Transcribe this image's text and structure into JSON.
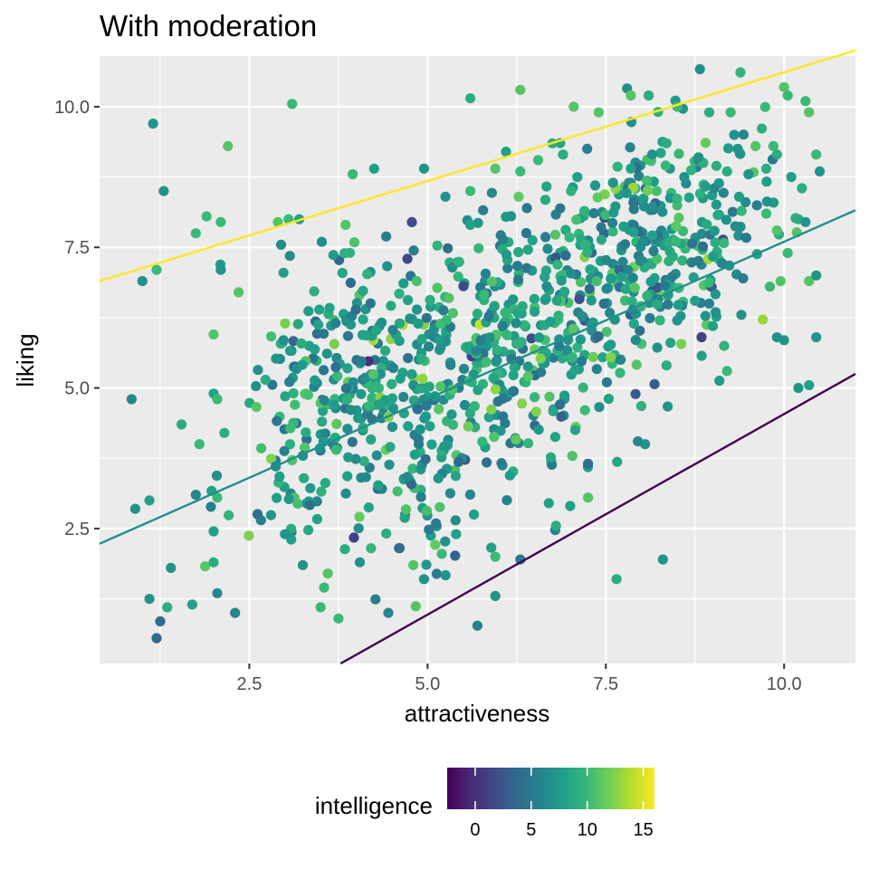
{
  "chart_data": {
    "type": "scatter",
    "title": "With moderation",
    "xlabel": "attractiveness",
    "ylabel": "liking",
    "xlim": [
      0.4,
      11.0
    ],
    "ylim": [
      0.1,
      10.9
    ],
    "x_ticks": [
      2.5,
      5.0,
      7.5,
      10.0
    ],
    "x_tick_labels": [
      "2.5",
      "5.0",
      "7.5",
      "10.0"
    ],
    "y_ticks": [
      2.5,
      5.0,
      7.5,
      10.0
    ],
    "y_tick_labels": [
      "2.5",
      "5.0",
      "7.5",
      "10.0"
    ],
    "grid": true,
    "color_variable": "intelligence",
    "color_scale": {
      "name": "viridis",
      "range": [
        -2.5,
        16.0
      ],
      "stops": [
        "#440154",
        "#482878",
        "#3e4989",
        "#31688e",
        "#26828e",
        "#1f9e89",
        "#35b779",
        "#6ece58",
        "#b5de2b",
        "#fde725"
      ]
    },
    "legend": {
      "title": "intelligence",
      "position": "bottom",
      "ticks": [
        0,
        5,
        10,
        15
      ],
      "tick_labels": [
        "0",
        "5",
        "10",
        "15"
      ]
    },
    "fit_lines": [
      {
        "intelligence": 16,
        "color": "#fde725",
        "x1": 0.4,
        "y1": 6.9,
        "x2": 11.0,
        "y2": 11.0
      },
      {
        "intelligence": 7,
        "color": "#21908c",
        "x1": 0.4,
        "y1": 2.23,
        "x2": 11.0,
        "y2": 8.16
      },
      {
        "intelligence": -2,
        "color": "#440154",
        "x1": 3.78,
        "y1": 0.1,
        "x2": 11.0,
        "y2": 5.25
      }
    ],
    "points": [
      [
        1.15,
        9.7,
        7
      ],
      [
        1.3,
        8.5,
        7
      ],
      [
        2.2,
        9.3,
        11
      ],
      [
        3.1,
        10.05,
        10
      ],
      [
        6.3,
        10.3,
        11
      ],
      [
        5.6,
        10.15,
        9
      ],
      [
        1.0,
        6.9,
        7
      ],
      [
        1.2,
        7.1,
        10
      ],
      [
        1.75,
        7.75,
        10
      ],
      [
        1.9,
        8.05,
        10
      ],
      [
        2.1,
        7.95,
        10
      ],
      [
        2.1,
        7.1,
        7
      ],
      [
        2.35,
        6.7,
        11
      ],
      [
        2.0,
        5.95,
        11
      ],
      [
        2.9,
        7.95,
        11
      ],
      [
        3.05,
        8.0,
        10
      ],
      [
        3.2,
        8.0,
        8
      ],
      [
        3.85,
        7.9,
        11
      ],
      [
        3.95,
        8.8,
        10
      ],
      [
        4.25,
        8.9,
        8
      ],
      [
        4.95,
        8.9,
        7
      ],
      [
        5.6,
        8.5,
        10
      ],
      [
        5.25,
        8.4,
        7
      ],
      [
        5.6,
        7.9,
        8
      ],
      [
        0.85,
        4.8,
        6
      ],
      [
        0.9,
        2.85,
        7
      ],
      [
        1.1,
        3.0,
        8
      ],
      [
        1.55,
        4.35,
        9
      ],
      [
        1.8,
        4.0,
        10
      ],
      [
        2.0,
        4.9,
        8
      ],
      [
        2.05,
        4.8,
        10
      ],
      [
        2.15,
        4.2,
        9
      ],
      [
        2.05,
        3.05,
        10
      ],
      [
        1.75,
        3.1,
        6
      ],
      [
        1.4,
        1.8,
        7
      ],
      [
        1.7,
        1.15,
        8
      ],
      [
        2.0,
        2.45,
        8
      ],
      [
        2.0,
        1.9,
        9
      ],
      [
        2.05,
        1.35,
        6
      ],
      [
        2.3,
        1.0,
        6
      ],
      [
        1.1,
        1.25,
        7
      ],
      [
        1.25,
        0.85,
        4
      ],
      [
        1.2,
        0.55,
        4
      ],
      [
        1.35,
        1.1,
        9
      ],
      [
        3.0,
        2.4,
        7
      ],
      [
        3.25,
        1.85,
        7
      ],
      [
        3.5,
        1.1,
        10
      ],
      [
        3.6,
        1.7,
        11
      ],
      [
        3.55,
        1.45,
        10
      ],
      [
        3.75,
        0.9,
        10
      ],
      [
        4.05,
        1.9,
        7
      ],
      [
        4.45,
        1.0,
        6
      ],
      [
        4.6,
        2.15,
        4
      ],
      [
        4.8,
        1.85,
        11
      ],
      [
        4.95,
        1.6,
        7
      ],
      [
        5.2,
        2.05,
        10
      ],
      [
        5.4,
        2.4,
        8
      ],
      [
        5.65,
        2.75,
        8
      ],
      [
        5.95,
        1.3,
        7
      ],
      [
        5.95,
        2.0,
        10
      ],
      [
        6.3,
        1.95,
        5
      ],
      [
        6.7,
        2.95,
        8
      ],
      [
        6.8,
        2.55,
        9
      ],
      [
        7.0,
        2.9,
        8
      ],
      [
        7.25,
        3.05,
        11
      ],
      [
        7.25,
        3.65,
        4
      ],
      [
        7.65,
        1.6,
        9
      ],
      [
        8.05,
        4.0,
        7
      ],
      [
        7.95,
        4.05,
        6
      ],
      [
        8.3,
        1.95,
        7
      ],
      [
        8.35,
        5.4,
        9
      ],
      [
        8.5,
        6.2,
        7
      ],
      [
        9.0,
        6.1,
        8
      ],
      [
        9.4,
        6.3,
        7
      ],
      [
        9.9,
        5.9,
        7
      ],
      [
        10.0,
        5.85,
        7
      ],
      [
        10.2,
        5.0,
        7
      ],
      [
        10.35,
        5.05,
        8
      ],
      [
        10.45,
        5.9,
        7
      ],
      [
        10.35,
        6.9,
        11
      ],
      [
        10.45,
        7.0,
        7
      ],
      [
        9.8,
        6.8,
        10
      ],
      [
        9.2,
        5.3,
        10
      ],
      [
        8.75,
        6.55,
        8
      ],
      [
        7.05,
        10.0,
        11
      ],
      [
        7.4,
        9.9,
        11
      ],
      [
        7.85,
        10.2,
        11
      ],
      [
        8.1,
        10.2,
        9
      ],
      [
        8.5,
        10.0,
        10
      ],
      [
        8.95,
        9.9,
        9
      ],
      [
        9.25,
        9.9,
        10
      ],
      [
        9.3,
        9.5,
        7
      ],
      [
        9.35,
        9.25,
        7
      ],
      [
        9.6,
        9.3,
        11
      ],
      [
        9.85,
        9.3,
        10
      ],
      [
        9.9,
        9.15,
        9
      ],
      [
        10.0,
        10.35,
        11
      ],
      [
        10.05,
        10.2,
        10
      ],
      [
        10.3,
        10.1,
        10
      ],
      [
        10.35,
        9.9,
        11
      ],
      [
        10.45,
        9.15,
        10
      ],
      [
        10.5,
        8.85,
        7
      ],
      [
        6.75,
        9.35,
        9
      ],
      [
        6.55,
        9.05,
        10
      ],
      [
        6.3,
        8.85,
        10
      ],
      [
        6.1,
        9.2,
        8
      ],
      [
        5.95,
        8.9,
        11
      ],
      [
        6.9,
        9.15,
        9
      ],
      [
        7.1,
        8.75,
        8
      ],
      [
        7.35,
        8.6,
        7
      ],
      [
        7.6,
        8.65,
        7
      ],
      [
        7.85,
        8.9,
        8
      ],
      [
        8.15,
        9.15,
        7
      ],
      [
        8.35,
        9.35,
        9
      ],
      [
        8.6,
        8.75,
        7
      ],
      [
        8.8,
        9.1,
        7
      ],
      [
        9.05,
        8.95,
        9
      ],
      [
        9.2,
        8.85,
        9
      ],
      [
        9.5,
        8.8,
        7
      ],
      [
        9.75,
        8.9,
        9
      ],
      [
        10.1,
        8.75,
        8
      ],
      [
        10.25,
        8.55,
        9
      ],
      [
        9.75,
        8.1,
        10
      ],
      [
        9.9,
        7.8,
        11
      ],
      [
        10.05,
        7.4,
        10
      ],
      [
        9.95,
        6.9,
        11
      ],
      [
        10.2,
        8.0,
        9
      ],
      [
        10.3,
        7.95,
        7
      ]
    ],
    "cluster_points": [
      {
        "x": 3.2,
        "y": 4.8,
        "sx": 0.35,
        "sy": 0.9,
        "n": 70
      },
      {
        "x": 4.15,
        "y": 4.9,
        "sx": 0.3,
        "sy": 1.2,
        "n": 120
      },
      {
        "x": 4.95,
        "y": 4.8,
        "sx": 0.3,
        "sy": 1.4,
        "n": 140
      },
      {
        "x": 5.9,
        "y": 5.8,
        "sx": 0.35,
        "sy": 1.25,
        "n": 170
      },
      {
        "x": 6.95,
        "y": 6.4,
        "sx": 0.35,
        "sy": 1.25,
        "n": 170
      },
      {
        "x": 8.0,
        "y": 7.3,
        "sx": 0.35,
        "sy": 1.1,
        "n": 160
      },
      {
        "x": 9.0,
        "y": 7.7,
        "sx": 0.45,
        "sy": 1.0,
        "n": 110
      },
      {
        "x": 3.9,
        "y": 6.3,
        "sx": 0.6,
        "sy": 0.7,
        "n": 35
      },
      {
        "x": 2.9,
        "y": 2.9,
        "sx": 0.4,
        "sy": 0.7,
        "n": 30
      }
    ]
  }
}
